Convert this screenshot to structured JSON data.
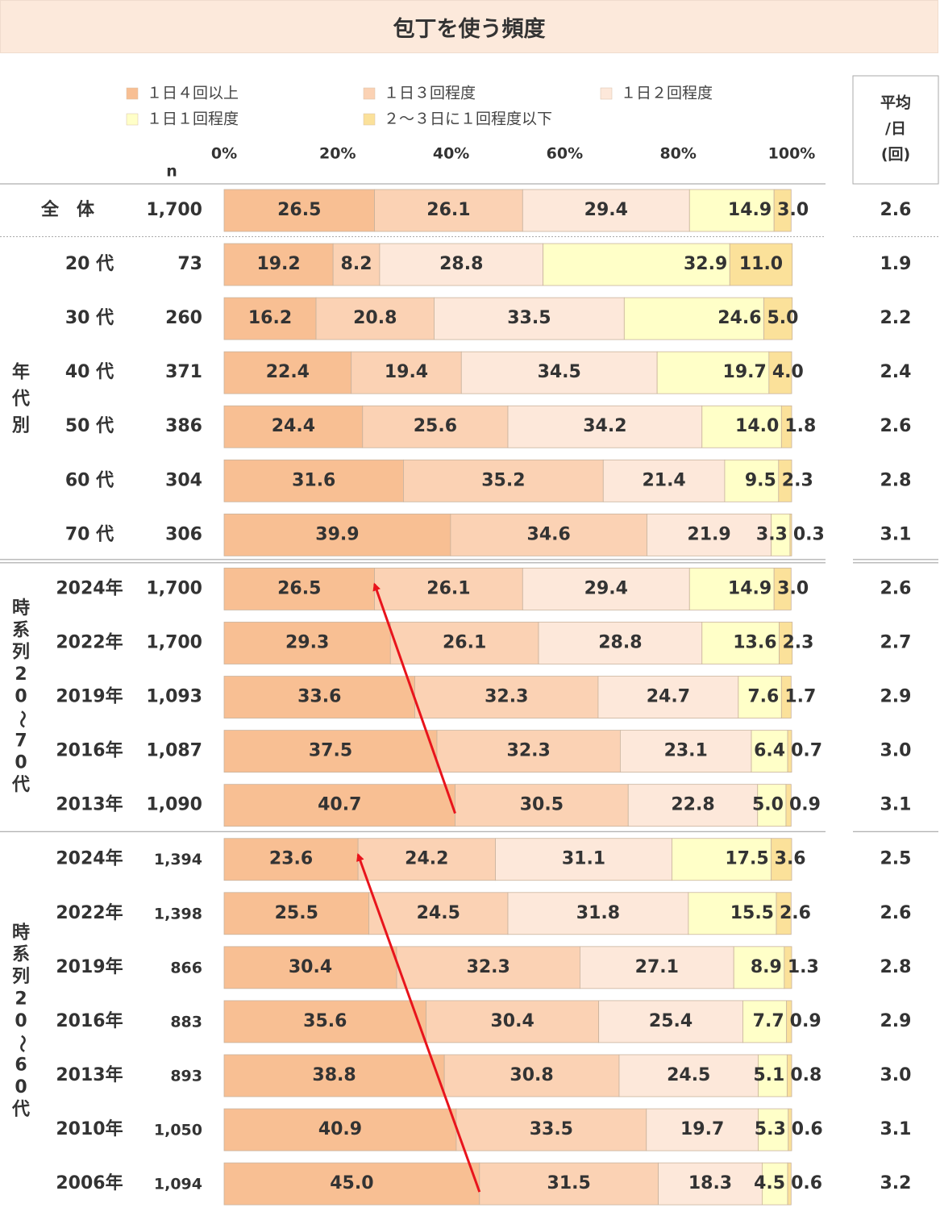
{
  "chart_data": {
    "type": "stacked-bar-horizontal",
    "title": "包丁を使う頻度",
    "xlabel": "",
    "ylabel": "",
    "xlim": [
      0,
      100
    ],
    "x_ticks": [
      "0%",
      "20%",
      "40%",
      "60%",
      "80%",
      "100%"
    ],
    "n_header": "n",
    "avg_header": [
      "平均",
      "/日",
      "(回)"
    ],
    "series": [
      {
        "name": "１日４回以上",
        "color": "#f8bf93"
      },
      {
        "name": "１日３回程度",
        "color": "#fbd2b4"
      },
      {
        "name": "１日２回程度",
        "color": "#fde8da"
      },
      {
        "name": "１日１回程度",
        "color": "#ffffc8"
      },
      {
        "name": "２～３日に１回程度以下",
        "color": "#fbe19a"
      }
    ],
    "groups": [
      {
        "label": "",
        "rows": [
          {
            "label": "全　体",
            "n": "1,700",
            "avg": "2.6",
            "values": [
              26.5,
              26.1,
              29.4,
              14.9,
              3.0
            ],
            "labels": [
              "26.5",
              "26.1",
              "29.4",
              "14.9",
              "3.0"
            ]
          }
        ]
      },
      {
        "label": "年代別",
        "rows": [
          {
            "label": "20 代",
            "n": "73",
            "avg": "1.9",
            "values": [
              19.2,
              8.2,
              28.8,
              32.9,
              11.0
            ],
            "labels": [
              "19.2",
              "8.2",
              "28.8",
              "32.9",
              "11.0"
            ]
          },
          {
            "label": "30 代",
            "n": "260",
            "avg": "2.2",
            "values": [
              16.2,
              20.8,
              33.5,
              24.6,
              5.0
            ],
            "labels": [
              "16.2",
              "20.8",
              "33.5",
              "24.6",
              "5.0"
            ]
          },
          {
            "label": "40 代",
            "n": "371",
            "avg": "2.4",
            "values": [
              22.4,
              19.4,
              34.5,
              19.7,
              4.0
            ],
            "labels": [
              "22.4",
              "19.4",
              "34.5",
              "19.7",
              "4.0"
            ]
          },
          {
            "label": "50 代",
            "n": "386",
            "avg": "2.6",
            "values": [
              24.4,
              25.6,
              34.2,
              14.0,
              1.8
            ],
            "labels": [
              "24.4",
              "25.6",
              "34.2",
              "14.0",
              "1.8"
            ]
          },
          {
            "label": "60 代",
            "n": "304",
            "avg": "2.8",
            "values": [
              31.6,
              35.2,
              21.4,
              9.5,
              2.3
            ],
            "labels": [
              "31.6",
              "35.2",
              "21.4",
              "9.5",
              "2.3"
            ]
          },
          {
            "label": "70 代",
            "n": "306",
            "avg": "3.1",
            "values": [
              39.9,
              34.6,
              21.9,
              3.3,
              0.3
            ],
            "labels": [
              "39.9",
              "34.6",
              "21.9",
              "3.3",
              "0.3"
            ]
          }
        ]
      },
      {
        "label": "時系列20〜70代",
        "rows": [
          {
            "label": "2024年",
            "n": "1,700",
            "avg": "2.6",
            "values": [
              26.5,
              26.1,
              29.4,
              14.9,
              3.0
            ],
            "labels": [
              "26.5",
              "26.1",
              "29.4",
              "14.9",
              "3.0"
            ]
          },
          {
            "label": "2022年",
            "n": "1,700",
            "avg": "2.7",
            "values": [
              29.3,
              26.1,
              28.8,
              13.6,
              2.3
            ],
            "labels": [
              "29.3",
              "26.1",
              "28.8",
              "13.6",
              "2.3"
            ]
          },
          {
            "label": "2019年",
            "n": "1,093",
            "avg": "2.9",
            "values": [
              33.6,
              32.3,
              24.7,
              7.6,
              1.7
            ],
            "labels": [
              "33.6",
              "32.3",
              "24.7",
              "7.6",
              "1.7"
            ]
          },
          {
            "label": "2016年",
            "n": "1,087",
            "avg": "3.0",
            "values": [
              37.5,
              32.3,
              23.1,
              6.4,
              0.7
            ],
            "labels": [
              "37.5",
              "32.3",
              "23.1",
              "6.4",
              "0.7"
            ]
          },
          {
            "label": "2013年",
            "n": "1,090",
            "avg": "3.1",
            "values": [
              40.7,
              30.5,
              22.8,
              5.0,
              0.9
            ],
            "labels": [
              "40.7",
              "30.5",
              "22.8",
              "5.0",
              "0.9"
            ]
          }
        ]
      },
      {
        "label": "時系列20〜60代",
        "rows": [
          {
            "label": "2024年",
            "n": "1,394",
            "avg": "2.5",
            "values": [
              23.6,
              24.2,
              31.1,
              17.5,
              3.6
            ],
            "labels": [
              "23.6",
              "24.2",
              "31.1",
              "17.5",
              "3.6"
            ]
          },
          {
            "label": "2022年",
            "n": "1,398",
            "avg": "2.6",
            "values": [
              25.5,
              24.5,
              31.8,
              15.5,
              2.6
            ],
            "labels": [
              "25.5",
              "24.5",
              "31.8",
              "15.5",
              "2.6"
            ]
          },
          {
            "label": "2019年",
            "n": "866",
            "avg": "2.8",
            "values": [
              30.4,
              32.3,
              27.1,
              8.9,
              1.3
            ],
            "labels": [
              "30.4",
              "32.3",
              "27.1",
              "8.9",
              "1.3"
            ]
          },
          {
            "label": "2016年",
            "n": "883",
            "avg": "2.9",
            "values": [
              35.6,
              30.4,
              25.4,
              7.7,
              0.9
            ],
            "labels": [
              "35.6",
              "30.4",
              "25.4",
              "7.7",
              "0.9"
            ]
          },
          {
            "label": "2013年",
            "n": "893",
            "avg": "3.0",
            "values": [
              38.8,
              30.8,
              24.5,
              5.1,
              0.8
            ],
            "labels": [
              "38.8",
              "30.8",
              "24.5",
              "5.1",
              "0.8"
            ]
          },
          {
            "label": "2010年",
            "n": "1,050",
            "avg": "3.1",
            "values": [
              40.9,
              33.5,
              19.7,
              5.3,
              0.6
            ],
            "labels": [
              "40.9",
              "33.5",
              "19.7",
              "5.3",
              "0.6"
            ]
          },
          {
            "label": "2006年",
            "n": "1,094",
            "avg": "3.2",
            "values": [
              45.0,
              31.5,
              18.3,
              4.5,
              0.6
            ],
            "labels": [
              "45.0",
              "31.5",
              "18.3",
              "4.5",
              "0.6"
            ]
          }
        ]
      }
    ],
    "annotations": [
      {
        "type": "arrow",
        "group": "時系列20〜70代",
        "from_row": "2013年",
        "from_value": 40.7,
        "to_row": "2024年",
        "to_value": 26.5,
        "color": "#e8141c"
      },
      {
        "type": "arrow",
        "group": "時系列20〜60代",
        "from_row": "2006年",
        "from_value": 45.0,
        "to_row": "2024年",
        "to_value": 23.6,
        "color": "#e8141c"
      }
    ]
  }
}
